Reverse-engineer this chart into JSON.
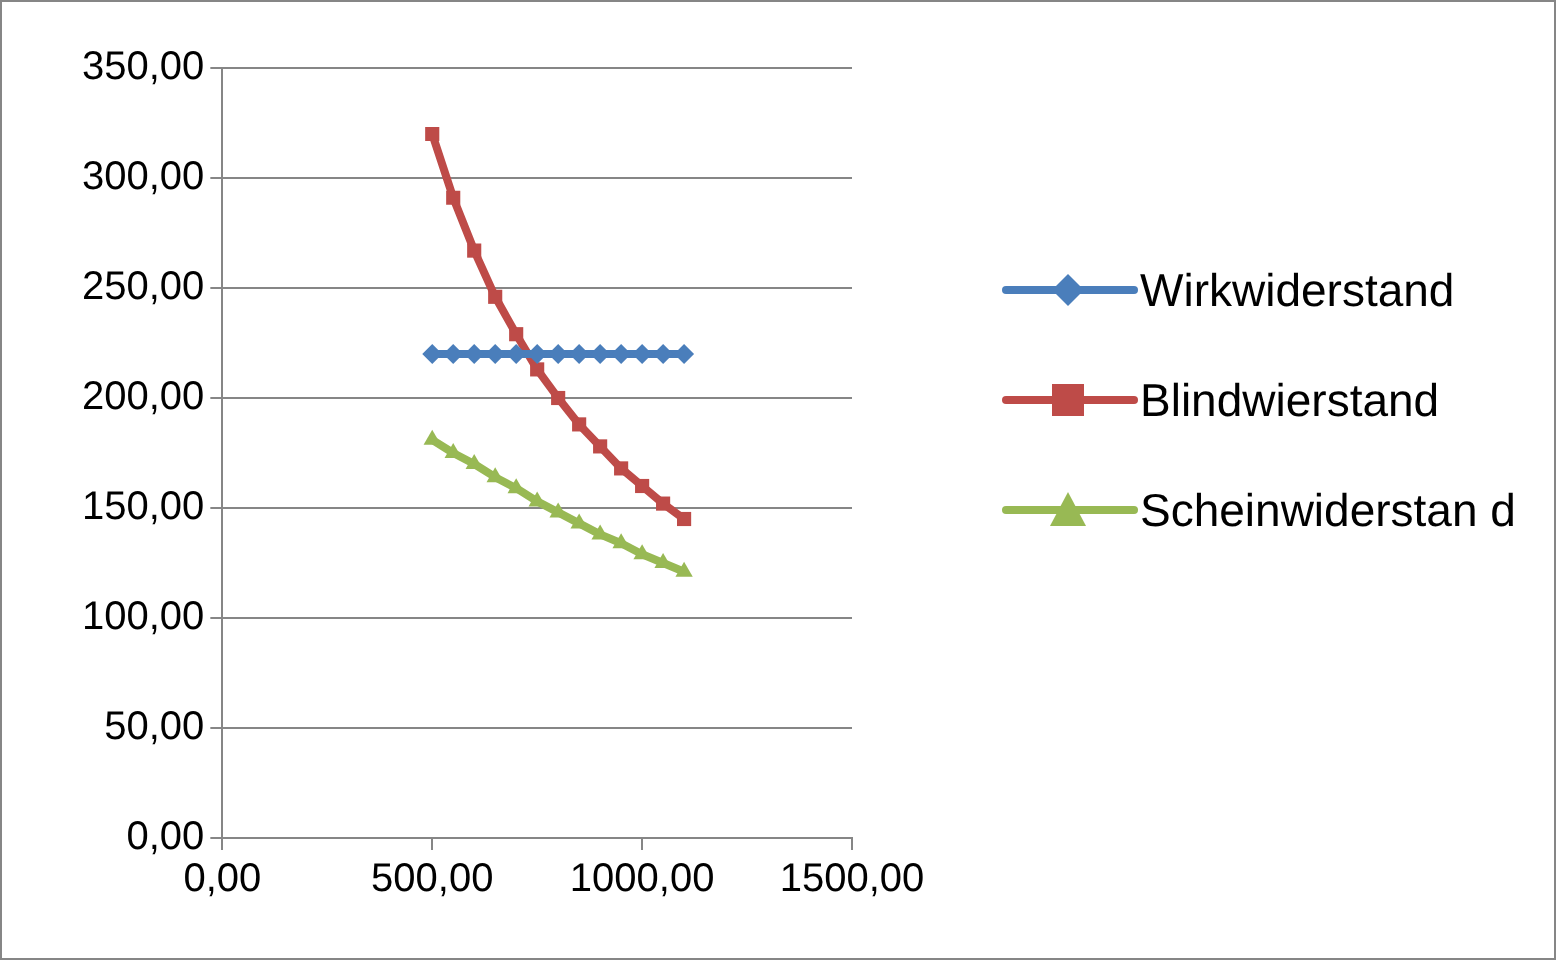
{
  "chart_data": {
    "type": "line",
    "x": [
      500,
      550,
      600,
      650,
      700,
      750,
      800,
      850,
      900,
      950,
      1000,
      1050,
      1100
    ],
    "series": [
      {
        "name": "Wirkwiderstand",
        "color": "#4a7ebb",
        "marker": "diamond",
        "values": [
          220,
          220,
          220,
          220,
          220,
          220,
          220,
          220,
          220,
          220,
          220,
          220,
          220
        ]
      },
      {
        "name": "Blindwierstand",
        "color": "#be4b48",
        "marker": "square",
        "values": [
          320,
          291,
          267,
          246,
          229,
          213,
          200,
          188,
          178,
          168,
          160,
          152,
          145
        ]
      },
      {
        "name": "Scheinwiderstan d",
        "color": "#98b954",
        "marker": "triangle",
        "values": [
          181,
          175,
          170,
          164,
          159,
          153,
          148,
          143,
          138,
          134,
          129,
          125,
          121
        ]
      }
    ],
    "xlim": [
      0,
      1500
    ],
    "xticks": [
      {
        "value": 0,
        "label": "0,00"
      },
      {
        "value": 500,
        "label": "500,00"
      },
      {
        "value": 1000,
        "label": "1000,00"
      },
      {
        "value": 1500,
        "label": "1500,00"
      }
    ],
    "ylim": [
      0,
      350
    ],
    "yticks": [
      {
        "value": 0,
        "label": "0,00"
      },
      {
        "value": 50,
        "label": "50,00"
      },
      {
        "value": 100,
        "label": "100,00"
      },
      {
        "value": 150,
        "label": "150,00"
      },
      {
        "value": 200,
        "label": "200,00"
      },
      {
        "value": 250,
        "label": "250,00"
      },
      {
        "value": 300,
        "label": "300,00"
      },
      {
        "value": 350,
        "label": "350,00"
      }
    ],
    "grid": "y",
    "legend": "right",
    "line_style": "solid"
  }
}
